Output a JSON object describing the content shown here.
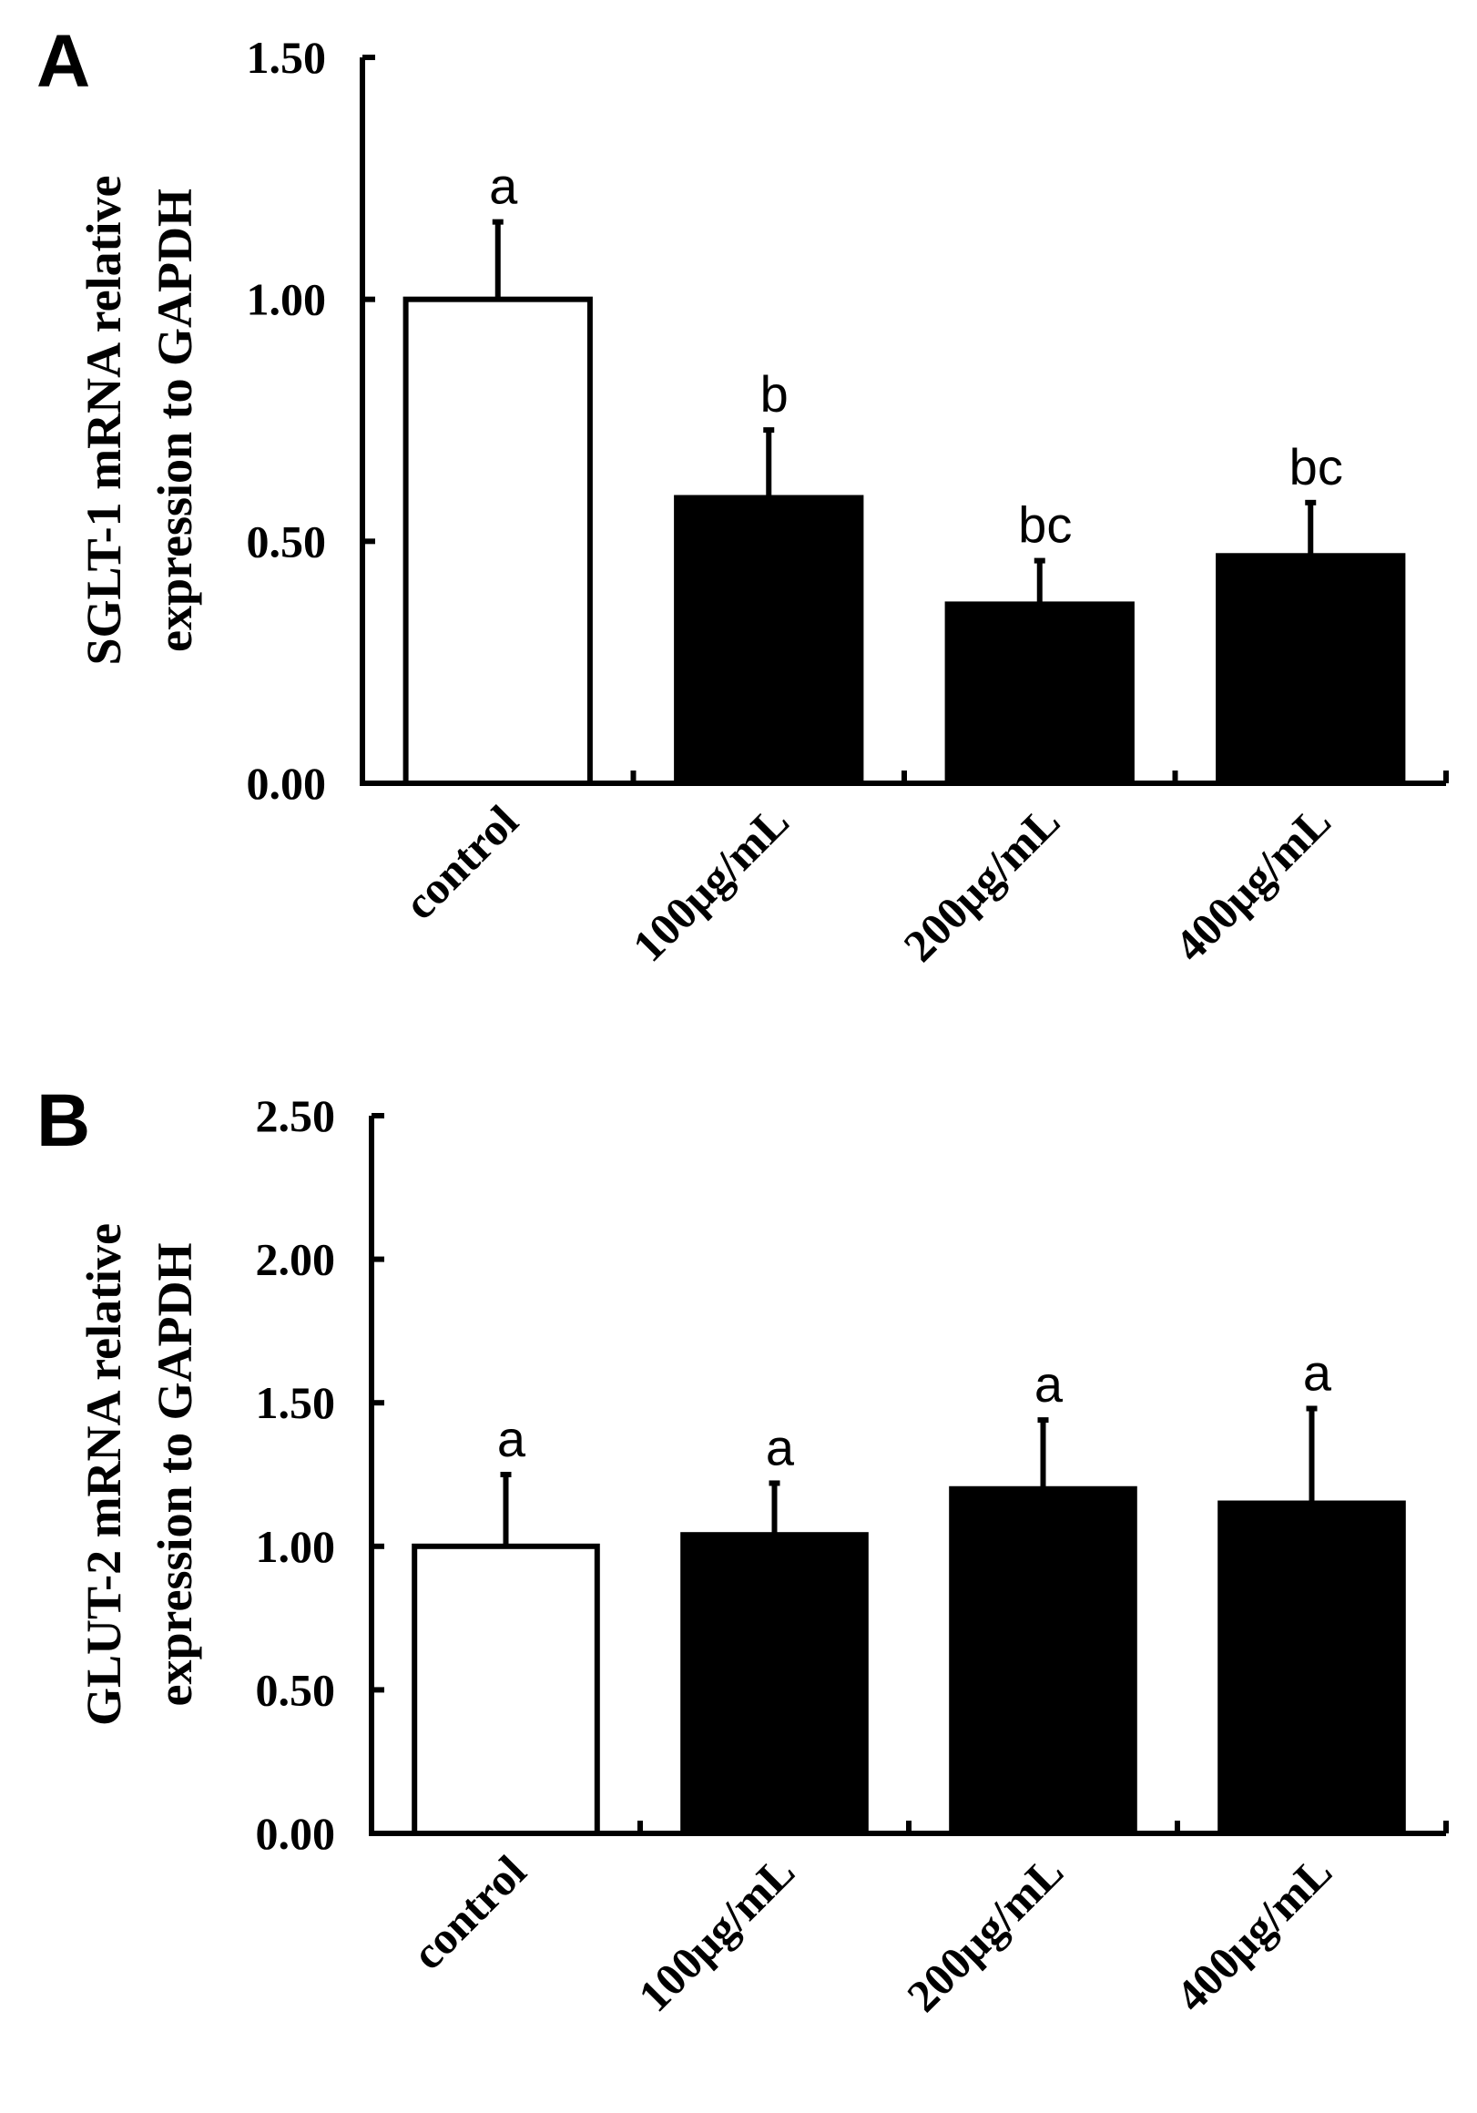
{
  "chart_data": [
    {
      "panel": "A",
      "type": "bar",
      "categories": [
        "control",
        "100μg/mL",
        "200μg/mL",
        "400μg/mL"
      ],
      "values": [
        1.0,
        0.59,
        0.37,
        0.47
      ],
      "errors": [
        0.16,
        0.14,
        0.09,
        0.11
      ],
      "significance": [
        "a",
        "b",
        "bc",
        "bc"
      ],
      "fills": [
        "#ffffff",
        "#000000",
        "#000000",
        "#000000"
      ],
      "ylabel_lines": [
        "SGLT-1 mRNA relative",
        "expression to GAPDH"
      ],
      "xlabel": "",
      "ylim": [
        0,
        1.5
      ],
      "yticks": [
        0,
        0.5,
        1.0,
        1.5
      ],
      "ytick_labels": [
        "0.00",
        "0.50",
        "1.00",
        "1.50"
      ]
    },
    {
      "panel": "B",
      "type": "bar",
      "categories": [
        "control",
        "100μg/mL",
        "200μg/mL",
        "400μg/mL"
      ],
      "values": [
        1.0,
        1.04,
        1.2,
        1.15
      ],
      "errors": [
        0.25,
        0.18,
        0.24,
        0.33
      ],
      "significance": [
        "a",
        "a",
        "a",
        "a"
      ],
      "fills": [
        "#ffffff",
        "#000000",
        "#000000",
        "#000000"
      ],
      "ylabel_lines": [
        "GLUT-2 mRNA relative",
        "expression to GAPDH"
      ],
      "xlabel": "",
      "ylim": [
        0,
        2.5
      ],
      "yticks": [
        0,
        0.5,
        1.0,
        1.5,
        2.0,
        2.5
      ],
      "ytick_labels": [
        "0.00",
        "0.50",
        "1.00",
        "1.50",
        "2.00",
        "2.50"
      ]
    }
  ]
}
